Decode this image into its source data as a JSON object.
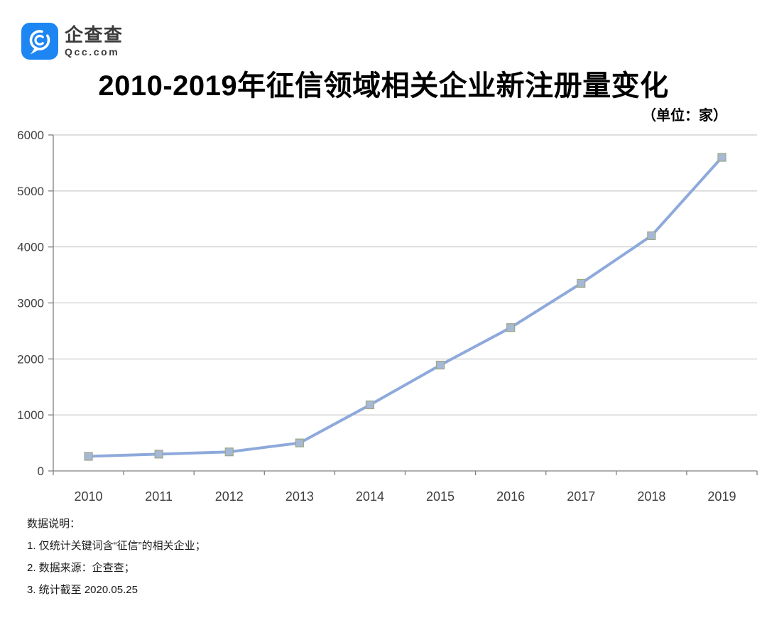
{
  "brand": {
    "logo_text": "企查查",
    "logo_domain": "Qcc.com",
    "logo_color": "#1E86F2"
  },
  "header": {
    "title": "2010-2019年征信领域相关企业新注册量变化",
    "unit_label": "（单位：家）"
  },
  "chart_data": {
    "type": "line",
    "title": "2010-2019年征信领域相关企业新注册量变化",
    "unit": "家",
    "categories": [
      "2010",
      "2011",
      "2012",
      "2013",
      "2014",
      "2015",
      "2016",
      "2017",
      "2018",
      "2019"
    ],
    "values": [
      260,
      300,
      340,
      500,
      1180,
      1890,
      2560,
      3350,
      4200,
      5600
    ],
    "xlabel": "",
    "ylabel": "",
    "ylim": [
      0,
      6000
    ],
    "ytick_step": 1000,
    "grid": true,
    "legend": "none",
    "colors": {
      "line": "#8EA9DB",
      "marker_fill": "#A6B8D6",
      "marker_stroke": "#9DA882",
      "grid": "#BFBFBF",
      "axis": "#7F7F7F",
      "tick_label": "#3F3F3F"
    }
  },
  "notes": {
    "heading": "数据说明：",
    "items": [
      "1. 仅统计关键词含“征信”的相关企业；",
      "2. 数据来源：企查查；",
      "3. 统计截至 2020.05.25"
    ]
  }
}
